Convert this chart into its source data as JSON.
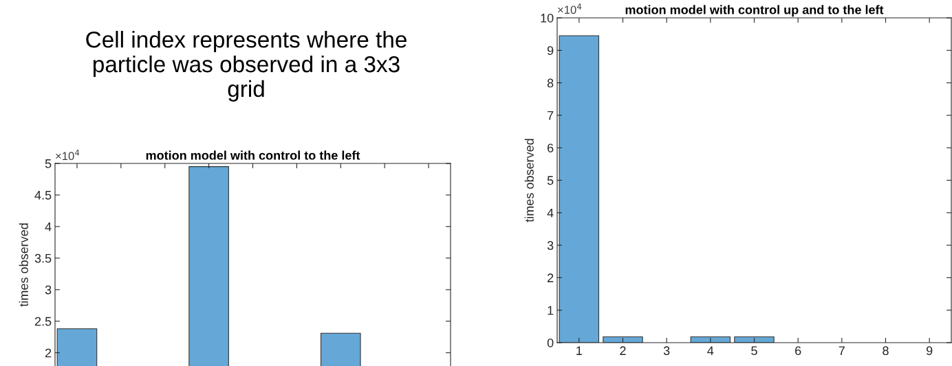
{
  "chart_data": [
    {
      "type": "bar",
      "title": "motion model with control to the left",
      "ylabel": "times observed",
      "categories": [
        null,
        null,
        null,
        null,
        null,
        null,
        null,
        null,
        null
      ],
      "values": [
        2.38,
        null,
        null,
        4.95,
        null,
        null,
        2.31,
        null,
        null
      ],
      "color": "#65a8d7",
      "ylim": [
        1.79,
        5
      ],
      "yticks": [
        2,
        2.5,
        3,
        3.5,
        4,
        4.5,
        5
      ],
      "tick_labels": "y",
      "grid": false,
      "annotations": [
        "×10$^{4}$",
        "Cell index represents where the\nparticle was observed in a 3x3\ngrid"
      ]
    },
    {
      "type": "bar",
      "title": "motion model with control up and to the left",
      "ylabel": "times observed",
      "categories": [
        "1",
        "2",
        "3",
        "4",
        "5",
        "6",
        "7",
        "8",
        "9"
      ],
      "values": [
        9.45,
        0.18,
        null,
        0.18,
        0.18,
        null,
        null,
        null,
        null
      ],
      "color": "#65a8d7",
      "ylim": [
        0,
        10
      ],
      "yticks": [
        0,
        1,
        2,
        3,
        4,
        5,
        6,
        7,
        8,
        9,
        10
      ],
      "grid": false,
      "annotations": [
        "×10$^{4}$"
      ]
    }
  ]
}
